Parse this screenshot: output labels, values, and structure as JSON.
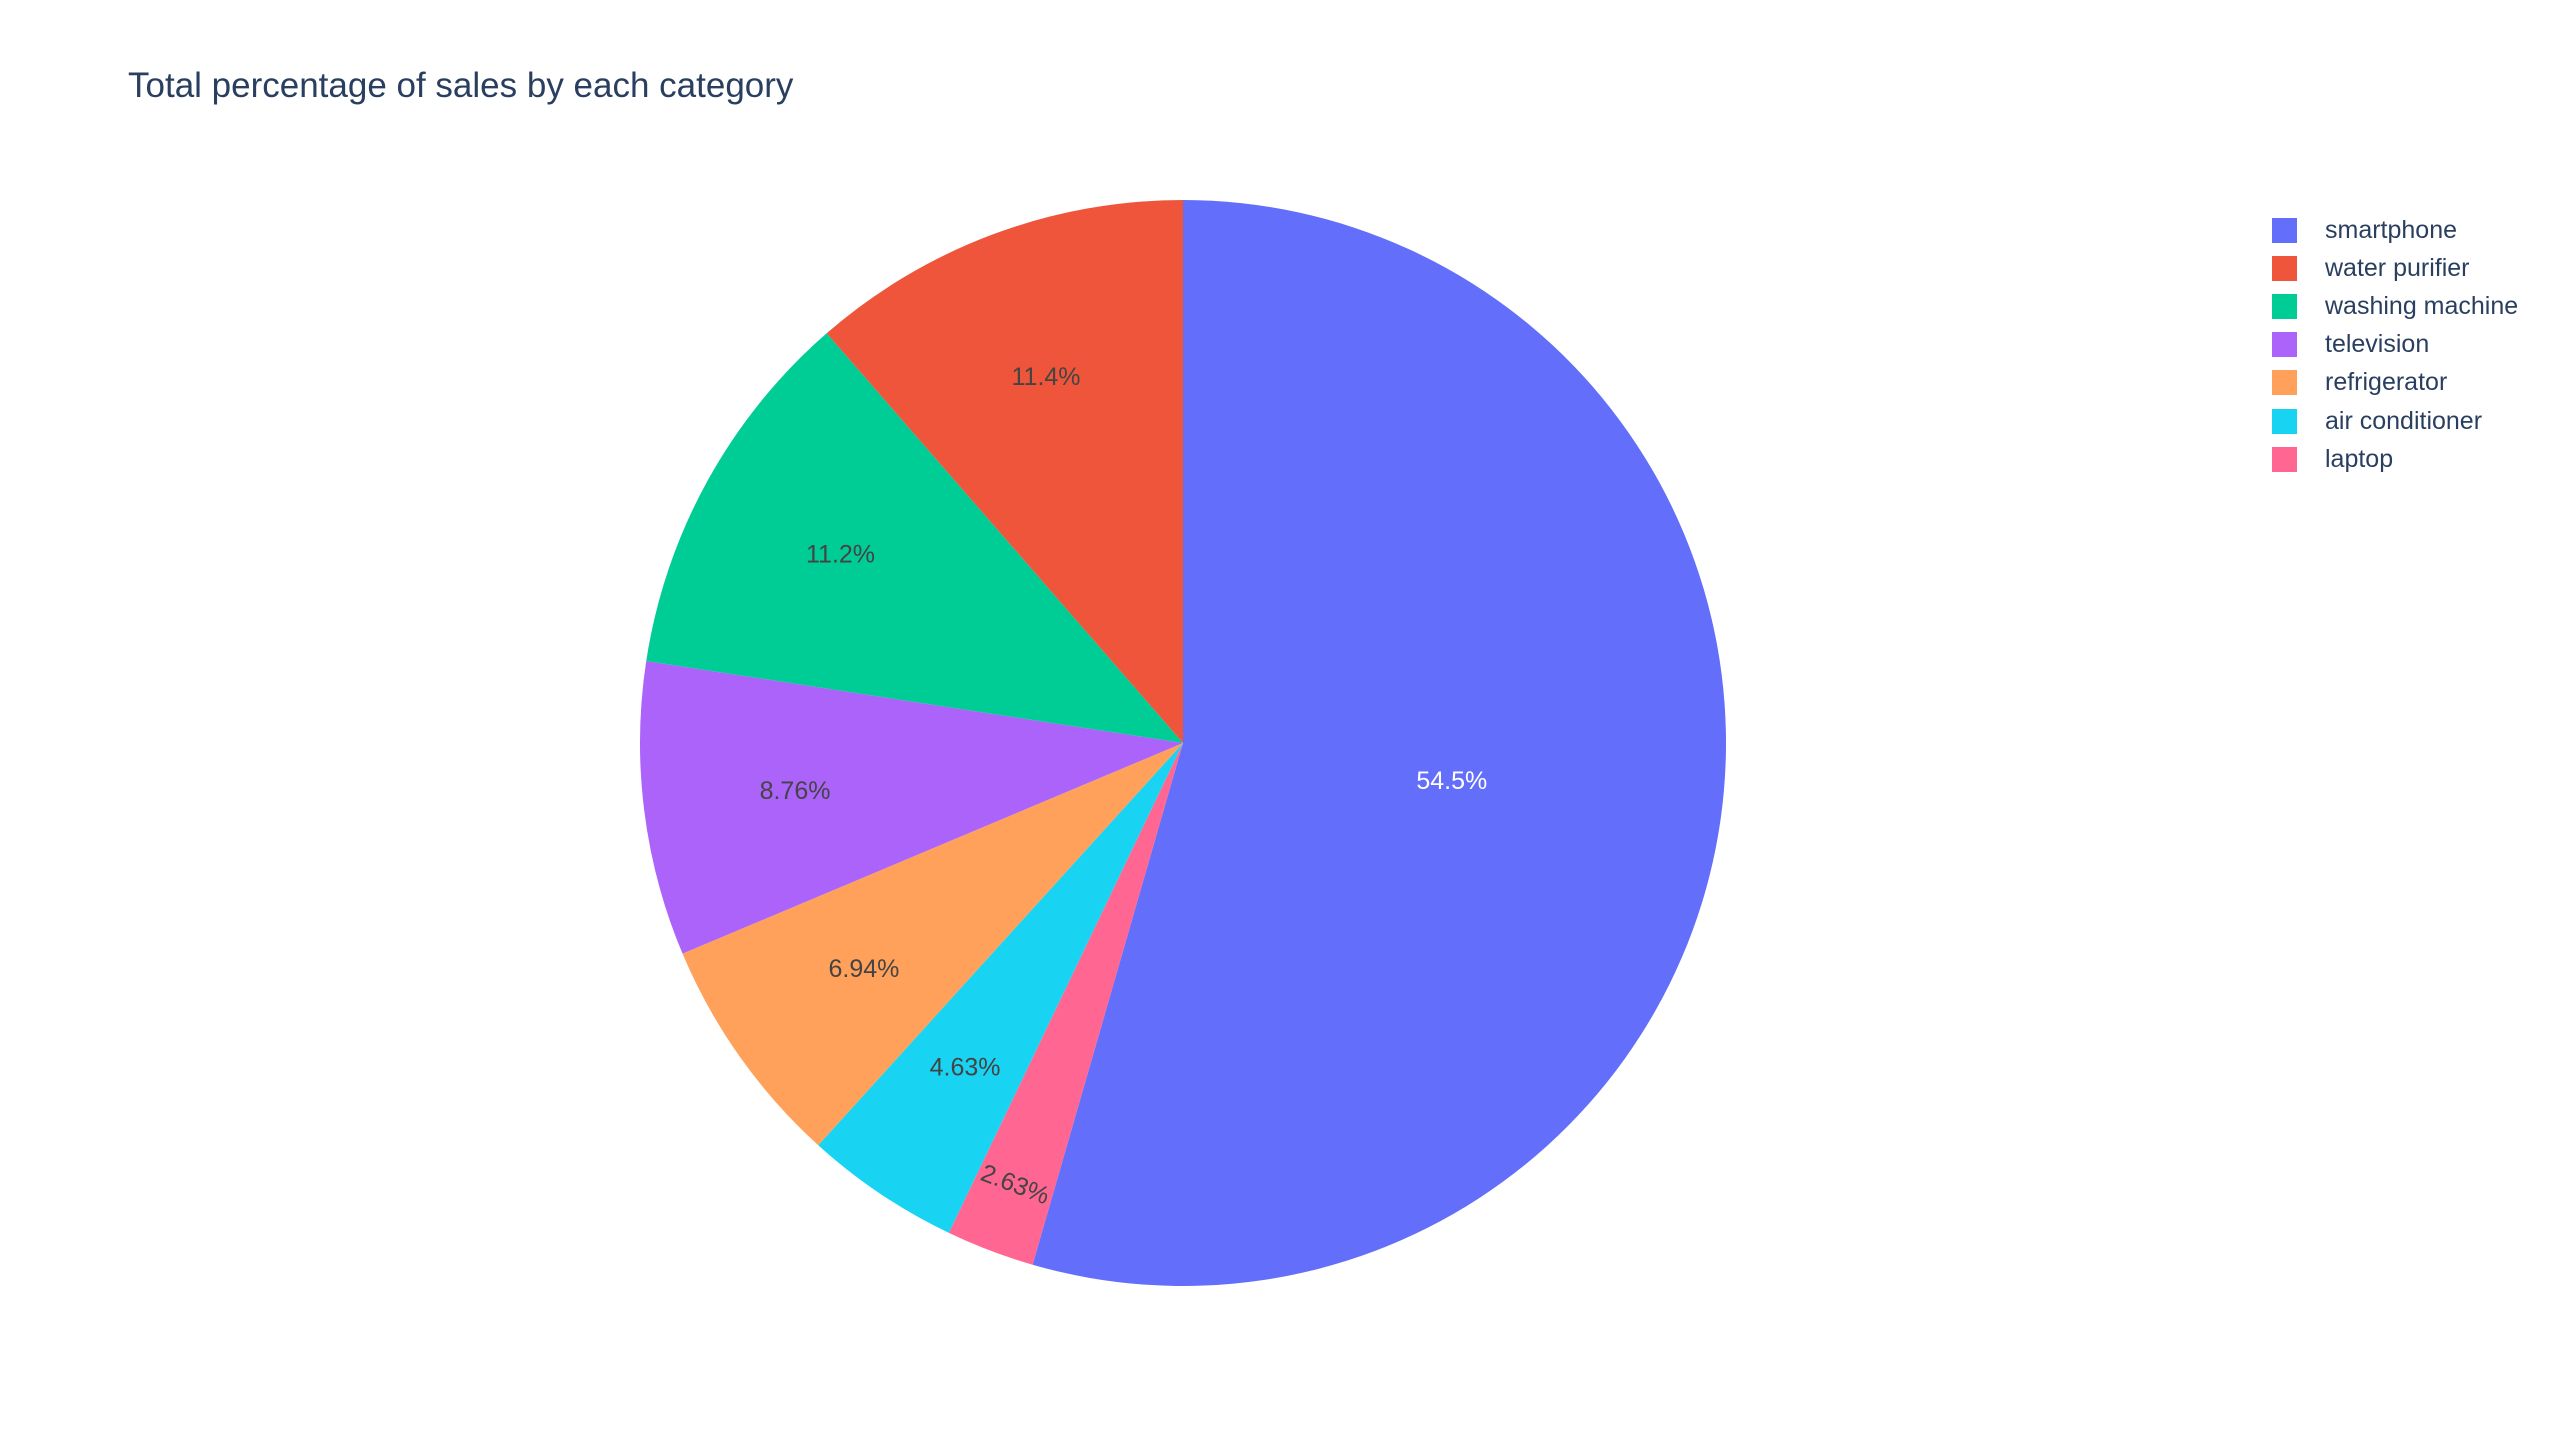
{
  "chart_data": {
    "type": "pie",
    "title": "Total percentage of sales by each category",
    "direction": "clockwise",
    "start_angle_deg": 90,
    "legend_position": "top-right",
    "slices": [
      {
        "label": "smartphone",
        "value": 54.5,
        "text": "54.5%",
        "color": "#636efa",
        "text_color": "#ffffff"
      },
      {
        "label": "laptop",
        "value": 2.63,
        "text": "2.63%",
        "color": "#ff6692",
        "text_color": "#444444"
      },
      {
        "label": "air conditioner",
        "value": 4.63,
        "text": "4.63%",
        "color": "#19d3f3",
        "text_color": "#444444"
      },
      {
        "label": "refrigerator",
        "value": 6.94,
        "text": "6.94%",
        "color": "#ffa15a",
        "text_color": "#444444"
      },
      {
        "label": "television",
        "value": 8.76,
        "text": "8.76%",
        "color": "#ab63fa",
        "text_color": "#444444"
      },
      {
        "label": "washing machine",
        "value": 11.2,
        "text": "11.2%",
        "color": "#00cc96",
        "text_color": "#444444"
      },
      {
        "label": "water purifier",
        "value": 11.4,
        "text": "11.4%",
        "color": "#ef553b",
        "text_color": "#444444"
      }
    ],
    "legend": [
      {
        "label": "smartphone",
        "color": "#636efa"
      },
      {
        "label": "water purifier",
        "color": "#ef553b"
      },
      {
        "label": "washing machine",
        "color": "#00cc96"
      },
      {
        "label": "television",
        "color": "#ab63fa"
      },
      {
        "label": "refrigerator",
        "color": "#ffa15a"
      },
      {
        "label": "air conditioner",
        "color": "#19d3f3"
      },
      {
        "label": "laptop",
        "color": "#ff6692"
      }
    ]
  }
}
